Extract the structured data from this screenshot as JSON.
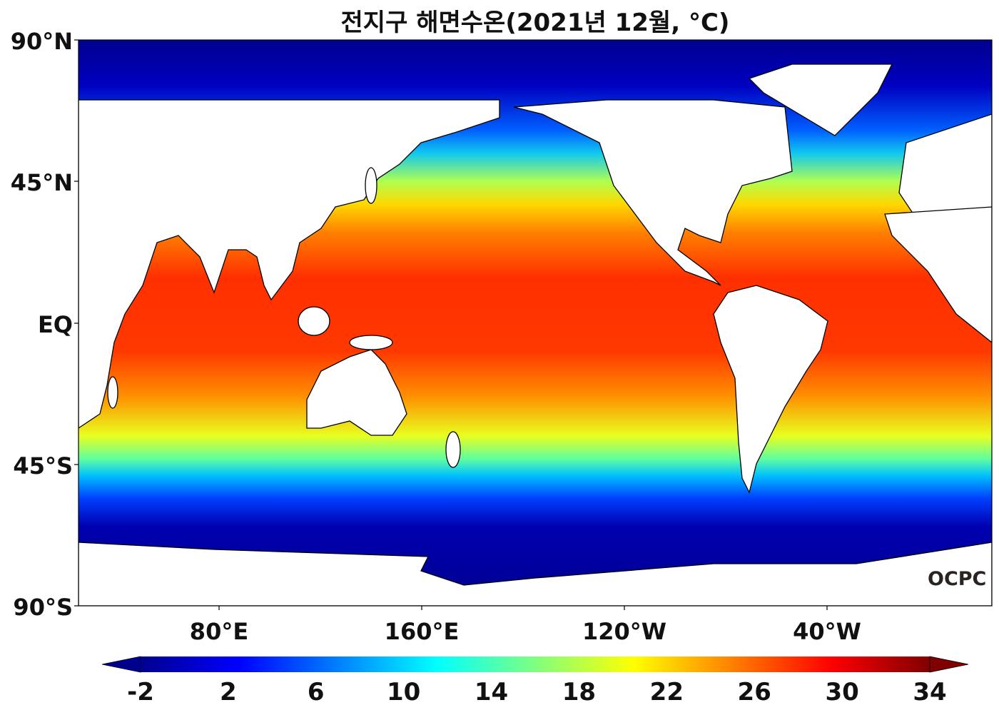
{
  "title": "전지구 해면수온(2021년 12월, °C)",
  "map": {
    "lat_labels": [
      "90°N",
      "45°N",
      "EQ",
      "45°S",
      "90°S"
    ],
    "lon_labels": [
      "80°E",
      "160°E",
      "120°W",
      "40°W"
    ],
    "variable": "sea surface temperature",
    "land_color": "#ffffff",
    "coastline_color": "#000000"
  },
  "colorbar": {
    "colormap": "jet",
    "range": [
      -2,
      34
    ],
    "extend": "both",
    "ticks": [
      "-2",
      "2",
      "6",
      "10",
      "14",
      "18",
      "22",
      "26",
      "30",
      "34"
    ]
  },
  "logo": "OCPC"
}
